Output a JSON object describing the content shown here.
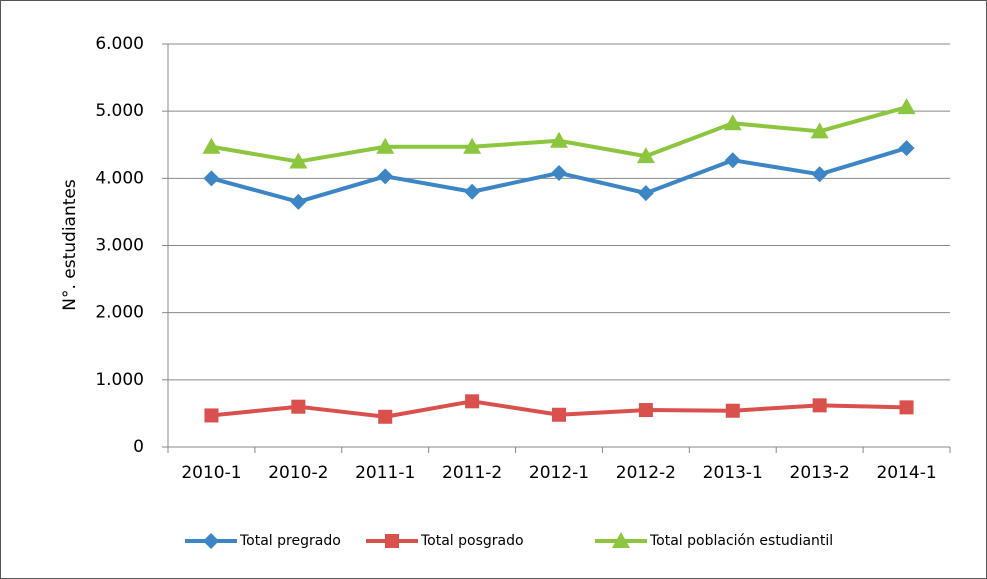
{
  "chart_data": {
    "type": "line",
    "y_label": "N°. estudiantes",
    "categories": [
      "2010-1",
      "2010-2",
      "2011-1",
      "2011-2",
      "2012-1",
      "2012-2",
      "2013-1",
      "2013-2",
      "2014-1"
    ],
    "series": [
      {
        "name": "Total pregrado",
        "color": "#3c86c6",
        "marker": "diamond",
        "values": [
          4000,
          3650,
          4030,
          3800,
          4080,
          3780,
          4270,
          4060,
          4450
        ]
      },
      {
        "name": "Total posgrado",
        "color": "#d9504c",
        "marker": "square",
        "values": [
          470,
          600,
          450,
          680,
          480,
          550,
          540,
          620,
          590
        ]
      },
      {
        "name": "Total población estudiantil",
        "color": "#8cc63f",
        "marker": "triangle",
        "values": [
          4470,
          4250,
          4470,
          4470,
          4560,
          4330,
          4820,
          4700,
          5060
        ]
      }
    ],
    "ylim": [
      0,
      6000
    ],
    "yticks": [
      0,
      {
        "value": 1000,
        "label": "1.000"
      },
      {
        "value": 2000,
        "label": "2.000"
      },
      {
        "value": 3000,
        "label": "3.000"
      },
      {
        "value": 4000,
        "label": "4.000"
      },
      {
        "value": 5000,
        "label": "5.000"
      },
      {
        "value": 6000,
        "label": "6.000"
      }
    ],
    "grid": true,
    "legend": "bottom"
  }
}
